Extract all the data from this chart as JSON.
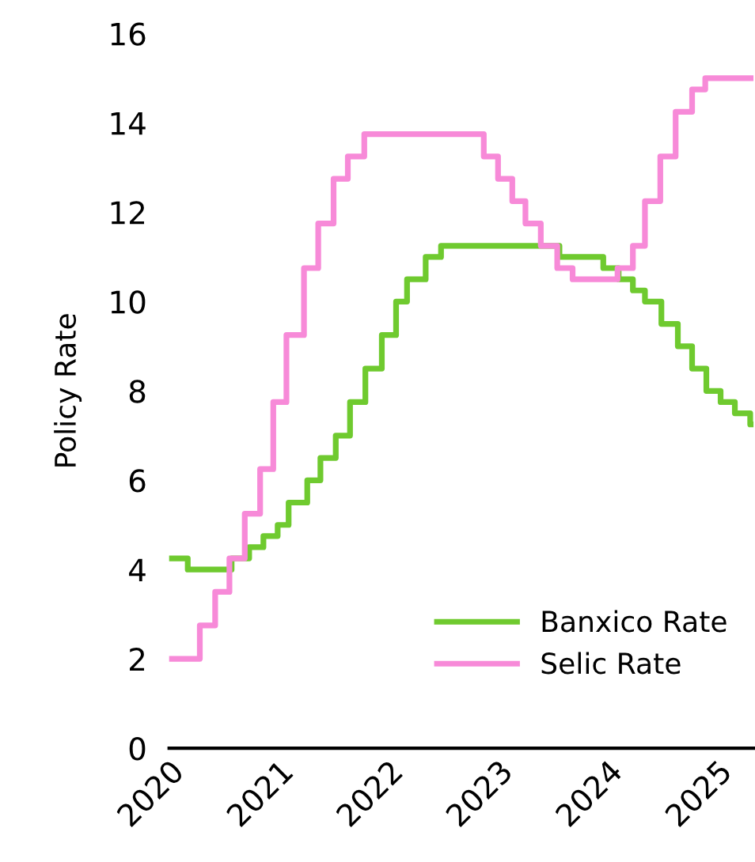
{
  "chart_data": {
    "type": "step",
    "ylabel": "Policy Rate",
    "xlim": [
      2020,
      2025.33
    ],
    "xticks": [
      2020,
      2021,
      2022,
      2023,
      2024,
      2025
    ],
    "ylim": [
      0,
      16
    ],
    "yticks": [
      0,
      2,
      4,
      6,
      8,
      10,
      12,
      14,
      16
    ],
    "grid": false,
    "legend": "bottom right",
    "marker": "none",
    "line_style": "solid",
    "series": [
      {
        "name": "Banxico Rate",
        "color": "#6fca2f",
        "x": [
          2020.0,
          2020.17,
          2020.57,
          2020.73,
          2020.86,
          2020.99,
          2021.09,
          2021.26,
          2021.38,
          2021.52,
          2021.65,
          2021.79,
          2021.94,
          2022.07,
          2022.17,
          2022.34,
          2022.48,
          2023.56,
          2023.96,
          2024.1,
          2024.23,
          2024.34,
          2024.49,
          2024.64,
          2024.77,
          2024.9,
          2025.03,
          2025.16,
          2025.3,
          2025.33
        ],
        "values": [
          4.25,
          4.0,
          4.25,
          4.5,
          4.75,
          5.0,
          5.5,
          6.0,
          6.5,
          7.0,
          7.75,
          8.5,
          9.25,
          10.0,
          10.5,
          11.0,
          11.25,
          11.0,
          10.75,
          10.5,
          10.25,
          10.0,
          9.5,
          9.0,
          8.5,
          8.0,
          7.75,
          7.5,
          7.25,
          7.25
        ]
      },
      {
        "name": "Selic Rate",
        "color": "#f78ad8",
        "x": [
          2020.0,
          2020.28,
          2020.42,
          2020.55,
          2020.69,
          2020.83,
          2020.95,
          2021.07,
          2021.23,
          2021.36,
          2021.5,
          2021.63,
          2021.78,
          2022.87,
          2023.0,
          2023.13,
          2023.25,
          2023.39,
          2023.54,
          2023.68,
          2024.09,
          2024.23,
          2024.34,
          2024.48,
          2024.62,
          2024.77,
          2024.89,
          2025.33
        ],
        "values": [
          2.0,
          2.75,
          3.5,
          4.25,
          5.25,
          6.25,
          7.75,
          9.25,
          10.75,
          11.75,
          12.75,
          13.25,
          13.75,
          13.25,
          12.75,
          12.25,
          11.75,
          11.25,
          10.75,
          10.5,
          10.75,
          11.25,
          12.25,
          13.25,
          14.25,
          14.75,
          15.0,
          15.0
        ]
      }
    ]
  }
}
